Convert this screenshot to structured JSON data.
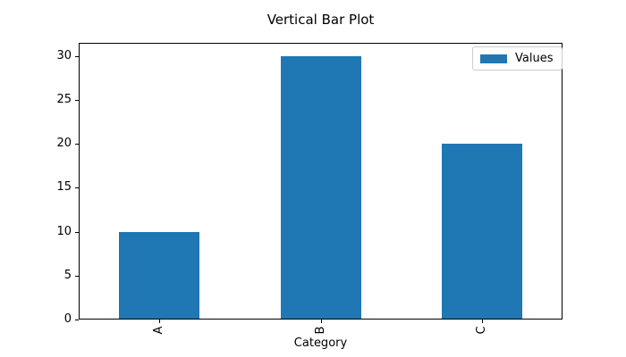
{
  "chart_data": {
    "type": "bar",
    "title": "Vertical Bar Plot",
    "xlabel": "Category",
    "ylabel": "",
    "categories": [
      "A",
      "B",
      "C"
    ],
    "series": [
      {
        "name": "Values",
        "values": [
          10,
          30,
          20
        ]
      }
    ],
    "yticks": [
      0,
      5,
      10,
      15,
      20,
      25,
      30
    ],
    "ylim": [
      0,
      31.5
    ],
    "bar_color": "#1f77b4",
    "axis_color": "#000000",
    "legend": {
      "position": "upper right",
      "entries": [
        "Values"
      ],
      "border_color": "#cccccc"
    },
    "grid": false,
    "x_tick_label_rotation": 90
  }
}
